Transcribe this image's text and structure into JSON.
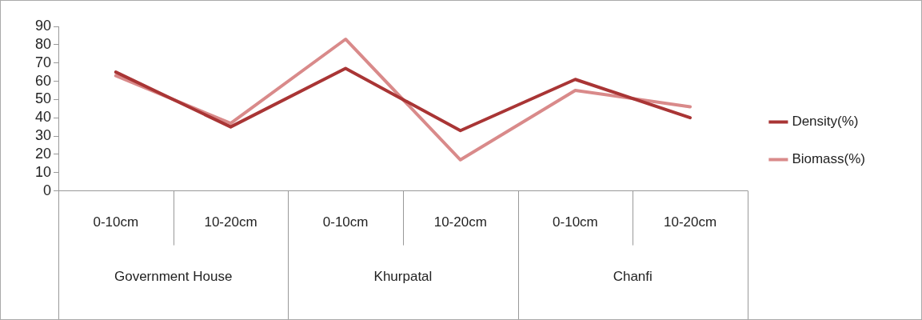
{
  "chart_data": {
    "type": "line",
    "categories": [
      "0-10cm",
      "10-20cm",
      "0-10cm",
      "10-20cm",
      "0-10cm",
      "10-20cm"
    ],
    "series": [
      {
        "name": "Density(%)",
        "color": "#a93535",
        "values": [
          65,
          35,
          67,
          33,
          61,
          40
        ]
      },
      {
        "name": "Biomass(%)",
        "color": "#d98a8a",
        "values": [
          63,
          37,
          83,
          17,
          55,
          46
        ]
      }
    ],
    "ylim": [
      0,
      90
    ],
    "yticks": [
      0,
      10,
      20,
      30,
      40,
      50,
      60,
      70,
      80,
      90
    ],
    "annotations": [
      "Government House",
      "Khurpatal",
      "Chanfi"
    ],
    "legend": "right",
    "marker": "none",
    "line_style": "solid"
  }
}
